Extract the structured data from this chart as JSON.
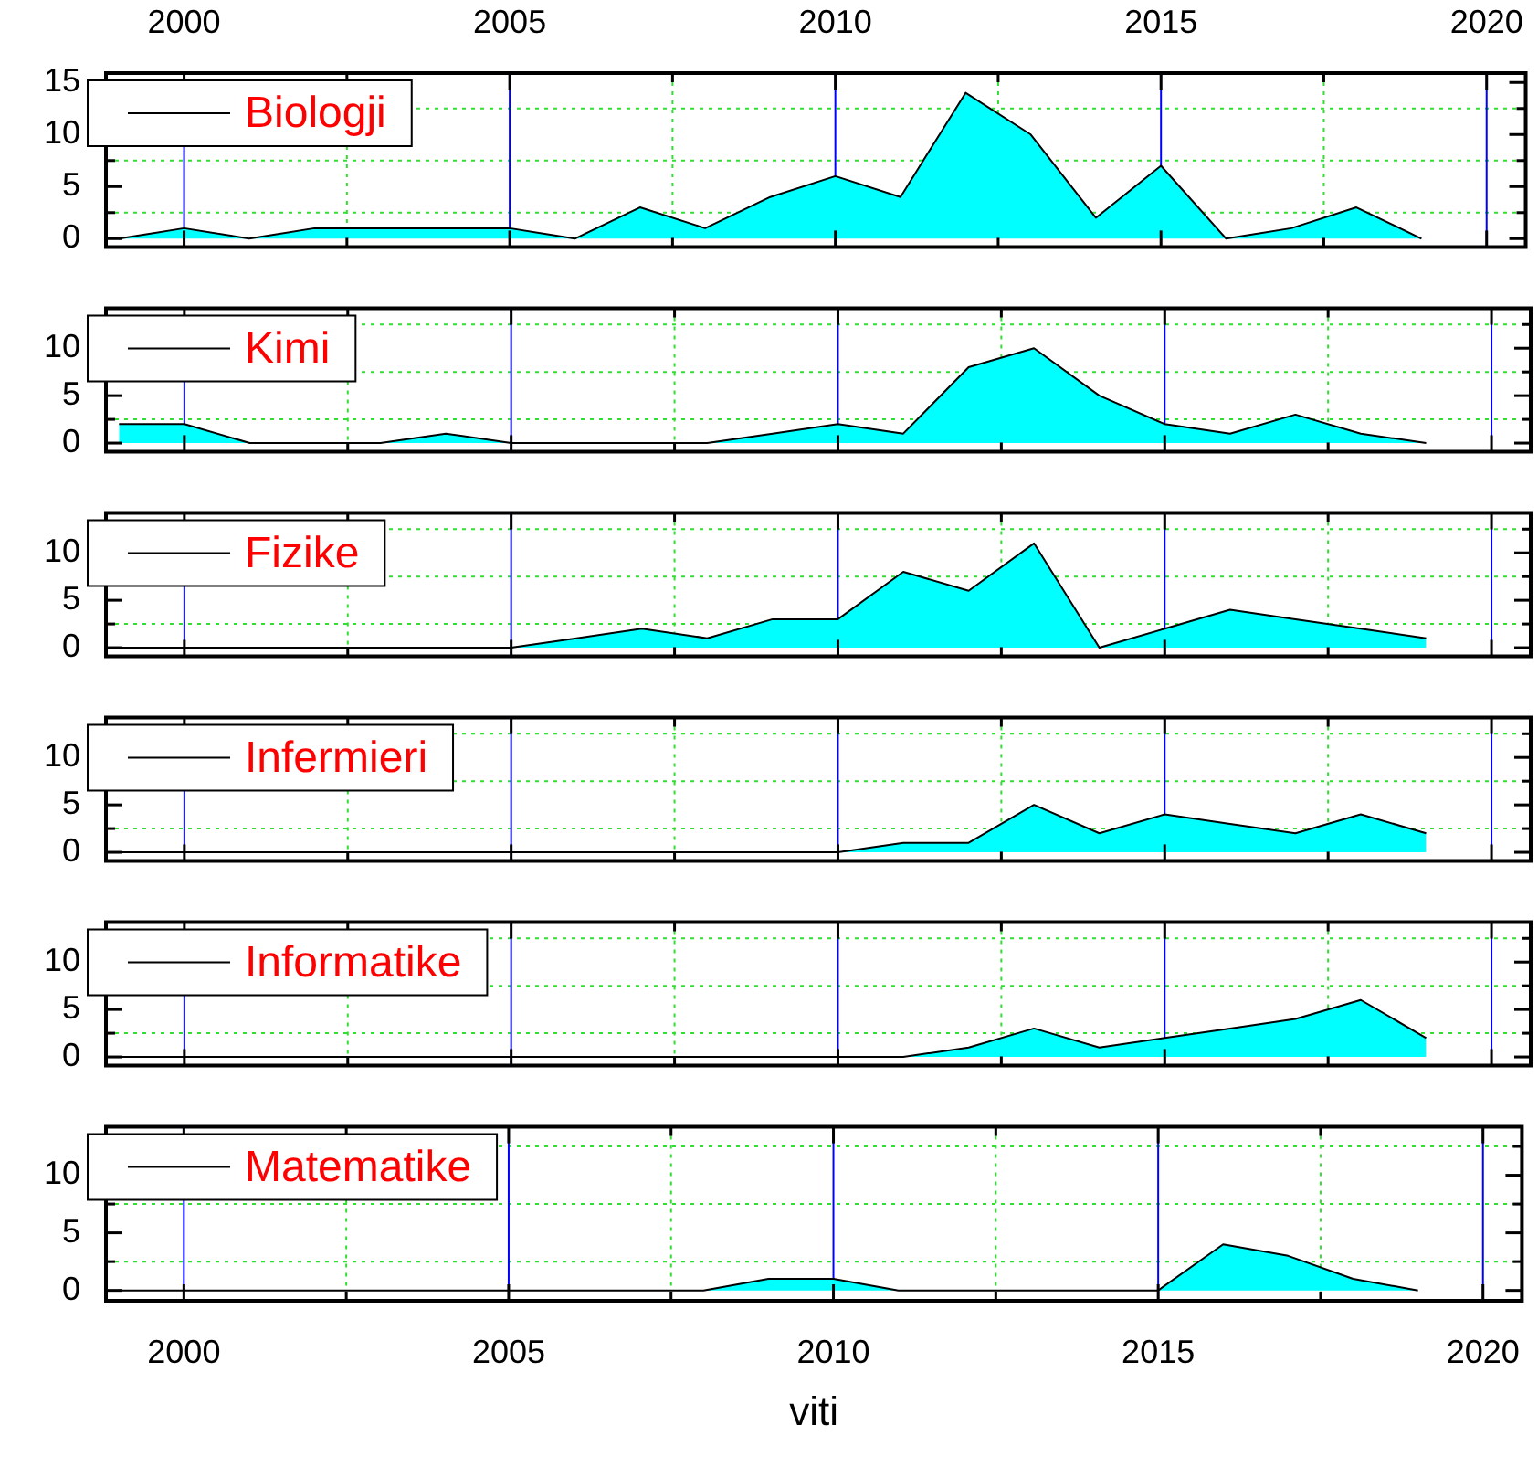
{
  "chart_data": [
    {
      "type": "area",
      "x": [
        1999,
        2000,
        2001,
        2002,
        2003,
        2004,
        2005,
        2006,
        2007,
        2008,
        2009,
        2010,
        2011,
        2012,
        2013,
        2014,
        2015,
        2016,
        2017,
        2018,
        2019
      ],
      "series": [
        {
          "name": "Biologji",
          "color": "#00ffff",
          "values": [
            0,
            1,
            0,
            1,
            1,
            1,
            1,
            0,
            3,
            1,
            4,
            6,
            4,
            14,
            10,
            2,
            7,
            0,
            1,
            3,
            0
          ]
        }
      ],
      "xlim": [
        1998.8,
        2020.6
      ],
      "xticks": [
        2000,
        {
          "value": 2002.5,
          "label": null
        },
        2005,
        {
          "value": 2007.5,
          "label": null
        },
        2010,
        {
          "value": 2012.5,
          "label": null
        },
        2015,
        {
          "value": 2017.5,
          "label": null
        },
        2020
      ],
      "x2lim": [
        1998.8,
        2020.6
      ],
      "x2ticks": [
        2000,
        2005,
        2010,
        2015,
        2020
      ],
      "ylim": [
        -0.8,
        15.9
      ],
      "yticks": [
        0,
        {
          "value": 2.5,
          "label": null
        },
        5,
        {
          "value": 7.5,
          "label": null
        },
        10,
        {
          "value": 12.5,
          "label": null
        },
        15
      ],
      "grid": true,
      "legend": "top left",
      "tick_labels": "y"
    },
    {
      "type": "area",
      "x": [
        1999,
        2000,
        2001,
        2002,
        2003,
        2004,
        2005,
        2006,
        2007,
        2008,
        2009,
        2010,
        2011,
        2012,
        2013,
        2014,
        2015,
        2016,
        2017,
        2018,
        2019
      ],
      "series": [
        {
          "name": "Kimi",
          "color": "#00ffff",
          "values": [
            2,
            2,
            0,
            0,
            0,
            1,
            0,
            0,
            0,
            0,
            1,
            2,
            1,
            8,
            10,
            5,
            2,
            1,
            3,
            1,
            0
          ]
        }
      ],
      "xlim": [
        1998.8,
        2020.6
      ],
      "xticks": [
        2000,
        {
          "value": 2002.5,
          "label": null
        },
        2005,
        {
          "value": 2007.5,
          "label": null
        },
        2010,
        {
          "value": 2012.5,
          "label": null
        },
        2015,
        {
          "value": 2017.5,
          "label": null
        },
        2020
      ],
      "ylim": [
        -0.9,
        14.2
      ],
      "yticks": [
        0,
        {
          "value": 2.5,
          "label": null
        },
        5,
        {
          "value": 7.5,
          "label": null
        },
        10,
        {
          "value": 12.5,
          "label": null
        }
      ],
      "grid": true,
      "legend": "top left",
      "tick_labels": "y"
    },
    {
      "type": "area",
      "x": [
        1999,
        2000,
        2001,
        2002,
        2003,
        2004,
        2005,
        2006,
        2007,
        2008,
        2009,
        2010,
        2011,
        2012,
        2013,
        2014,
        2015,
        2016,
        2017,
        2018,
        2019
      ],
      "series": [
        {
          "name": "Fizike",
          "color": "#00ffff",
          "values": [
            0,
            0,
            0,
            0,
            0,
            0,
            0,
            1,
            2,
            1,
            3,
            3,
            8,
            6,
            11,
            0,
            2,
            4,
            3,
            2,
            1
          ]
        }
      ],
      "xlim": [
        1998.8,
        2020.6
      ],
      "xticks": [
        2000,
        {
          "value": 2002.5,
          "label": null
        },
        2005,
        {
          "value": 2007.5,
          "label": null
        },
        2010,
        {
          "value": 2012.5,
          "label": null
        },
        2015,
        {
          "value": 2017.5,
          "label": null
        },
        2020
      ],
      "ylim": [
        -0.9,
        14.2
      ],
      "yticks": [
        0,
        {
          "value": 2.5,
          "label": null
        },
        5,
        {
          "value": 7.5,
          "label": null
        },
        10,
        {
          "value": 12.5,
          "label": null
        }
      ],
      "grid": true,
      "legend": "top left",
      "tick_labels": "y"
    },
    {
      "type": "area",
      "x": [
        1999,
        2000,
        2001,
        2002,
        2003,
        2004,
        2005,
        2006,
        2007,
        2008,
        2009,
        2010,
        2011,
        2012,
        2013,
        2014,
        2015,
        2016,
        2017,
        2018,
        2019
      ],
      "series": [
        {
          "name": "Infermieri",
          "color": "#00ffff",
          "values": [
            0,
            0,
            0,
            0,
            0,
            0,
            0,
            0,
            0,
            0,
            0,
            0,
            1,
            1,
            5,
            2,
            4,
            3,
            2,
            4,
            2
          ]
        }
      ],
      "xlim": [
        1998.8,
        2020.6
      ],
      "xticks": [
        2000,
        {
          "value": 2002.5,
          "label": null
        },
        2005,
        {
          "value": 2007.5,
          "label": null
        },
        2010,
        {
          "value": 2012.5,
          "label": null
        },
        2015,
        {
          "value": 2017.5,
          "label": null
        },
        2020
      ],
      "ylim": [
        -0.9,
        14.2
      ],
      "yticks": [
        0,
        {
          "value": 2.5,
          "label": null
        },
        5,
        {
          "value": 7.5,
          "label": null
        },
        10,
        {
          "value": 12.5,
          "label": null
        }
      ],
      "grid": true,
      "legend": "top left",
      "tick_labels": "y"
    },
    {
      "type": "area",
      "x": [
        1999,
        2000,
        2001,
        2002,
        2003,
        2004,
        2005,
        2006,
        2007,
        2008,
        2009,
        2010,
        2011,
        2012,
        2013,
        2014,
        2015,
        2016,
        2017,
        2018,
        2019
      ],
      "series": [
        {
          "name": "Informatike",
          "color": "#00ffff",
          "values": [
            0,
            0,
            0,
            0,
            0,
            0,
            0,
            0,
            0,
            0,
            0,
            0,
            0,
            1,
            3,
            1,
            2,
            3,
            4,
            6,
            2
          ]
        }
      ],
      "xlim": [
        1998.8,
        2020.6
      ],
      "xticks": [
        2000,
        {
          "value": 2002.5,
          "label": null
        },
        2005,
        {
          "value": 2007.5,
          "label": null
        },
        2010,
        {
          "value": 2012.5,
          "label": null
        },
        2015,
        {
          "value": 2017.5,
          "label": null
        },
        2020
      ],
      "ylim": [
        -0.9,
        14.2
      ],
      "yticks": [
        0,
        {
          "value": 2.5,
          "label": null
        },
        5,
        {
          "value": 7.5,
          "label": null
        },
        10,
        {
          "value": 12.5,
          "label": null
        }
      ],
      "grid": true,
      "legend": "top left",
      "tick_labels": "y"
    },
    {
      "type": "area",
      "x": [
        1999,
        2000,
        2001,
        2002,
        2003,
        2004,
        2005,
        2006,
        2007,
        2008,
        2009,
        2010,
        2011,
        2012,
        2013,
        2014,
        2015,
        2016,
        2017,
        2018,
        2019
      ],
      "series": [
        {
          "name": "Matematike",
          "color": "#00ffff",
          "values": [
            0,
            0,
            0,
            0,
            0,
            0,
            0,
            0,
            0,
            0,
            1,
            1,
            0,
            0,
            0,
            0,
            0,
            4,
            3,
            1,
            0
          ]
        }
      ],
      "xlim": [
        1998.8,
        2020.6
      ],
      "xticks": [
        2000,
        {
          "value": 2002.5,
          "label": null
        },
        2005,
        {
          "value": 2007.5,
          "label": null
        },
        2010,
        {
          "value": 2012.5,
          "label": null
        },
        2015,
        {
          "value": 2017.5,
          "label": null
        },
        2020
      ],
      "ylim": [
        -0.9,
        14.2
      ],
      "yticks": [
        0,
        {
          "value": 2.5,
          "label": null
        },
        5,
        {
          "value": 7.5,
          "label": null
        },
        10,
        {
          "value": 12.5,
          "label": null
        }
      ],
      "grid": true,
      "legend": "top left",
      "xlabel": "viti"
    }
  ]
}
